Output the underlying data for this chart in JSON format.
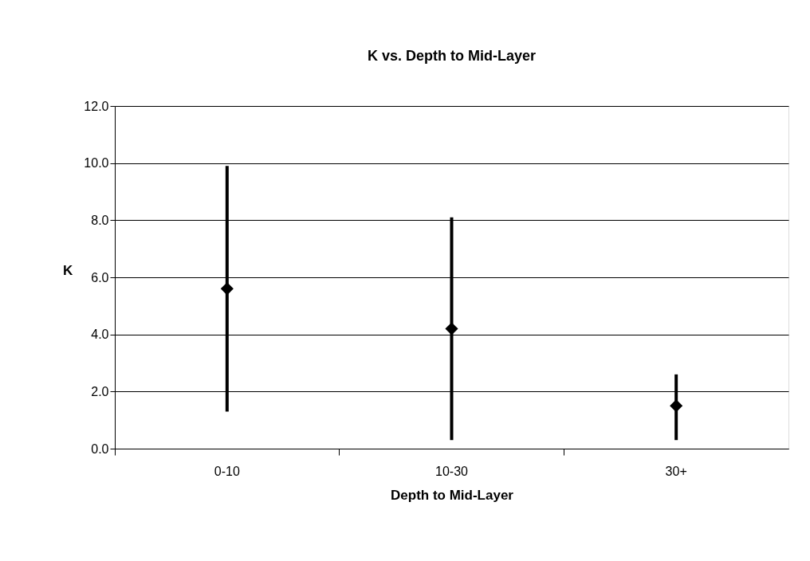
{
  "chart_data": {
    "type": "scatter",
    "title": "K vs. Depth to Mid-Layer",
    "xlabel": "Depth to Mid-Layer",
    "ylabel": "K",
    "categories": [
      "0-10",
      "10-30",
      "30+"
    ],
    "series": [
      {
        "color": "#000000",
        "values": [
          5.6,
          4.2,
          1.5
        ],
        "errors": [
          [
            1.3,
            9.9
          ],
          [
            0.3,
            8.1
          ],
          [
            0.3,
            2.6
          ]
        ]
      }
    ],
    "ylim": [
      0,
      12
    ],
    "yticks": [
      {
        "value": 0,
        "label": "0.0"
      },
      {
        "value": 2,
        "label": "2.0"
      },
      {
        "value": 4,
        "label": "4.0"
      },
      {
        "value": 6,
        "label": "6.0"
      },
      {
        "value": 8,
        "label": "8.0"
      },
      {
        "value": 10,
        "label": "10.0"
      },
      {
        "value": 12,
        "label": "12.0"
      }
    ],
    "grid": "y",
    "marker": "diamond"
  }
}
